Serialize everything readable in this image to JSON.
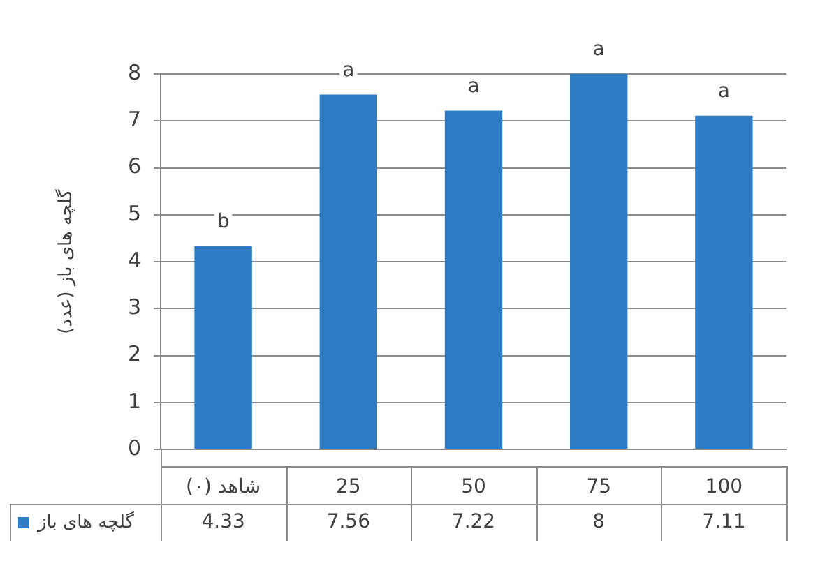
{
  "chart_data": {
    "type": "bar",
    "ylabel": "گلچه های باز (عدد)",
    "categories": [
      "شاهد (۰)",
      "25",
      "50",
      "75",
      "100"
    ],
    "series": [
      {
        "name": "گلچه های باز",
        "color": "#2e7cc3",
        "values": [
          4.33,
          7.56,
          7.22,
          8,
          7.11
        ]
      }
    ],
    "ylim": [
      0,
      8
    ],
    "yticks": [
      0,
      1,
      2,
      3,
      4,
      5,
      6,
      7,
      8
    ],
    "grid": "y",
    "legend": "bottom left",
    "data_labels": true,
    "annotations": [
      {
        "text": "b",
        "x": "شاهد (۰)",
        "y": 4.33
      },
      {
        "text": "a",
        "x": "25",
        "y": 7.56
      },
      {
        "text": "a",
        "x": "50",
        "y": 7.22
      },
      {
        "text": "a",
        "x": "75",
        "y": 8
      },
      {
        "text": "a",
        "x": "100",
        "y": 7.11
      }
    ]
  }
}
